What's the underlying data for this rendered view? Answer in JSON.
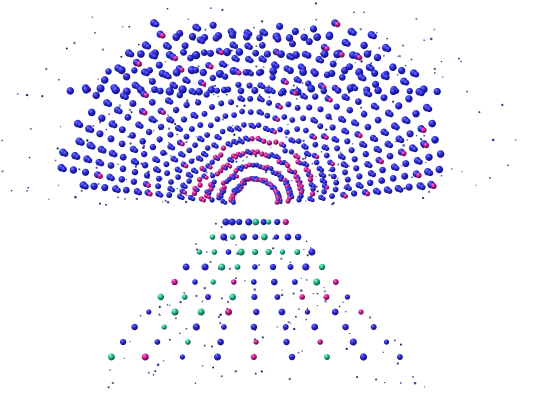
{
  "scene": {
    "background_color": "#ffffff",
    "description_free_render": true,
    "palette": {
      "sphere_primary": "#2a2ad6",
      "sphere_highlight": "#6b6bff",
      "sphere_shadow": "#10106a",
      "accent_magenta": "#d81b9e",
      "accent_teal": "#1fb38a",
      "speck": "#1a1a6e"
    },
    "regions": [
      "canopy",
      "stem"
    ]
  }
}
